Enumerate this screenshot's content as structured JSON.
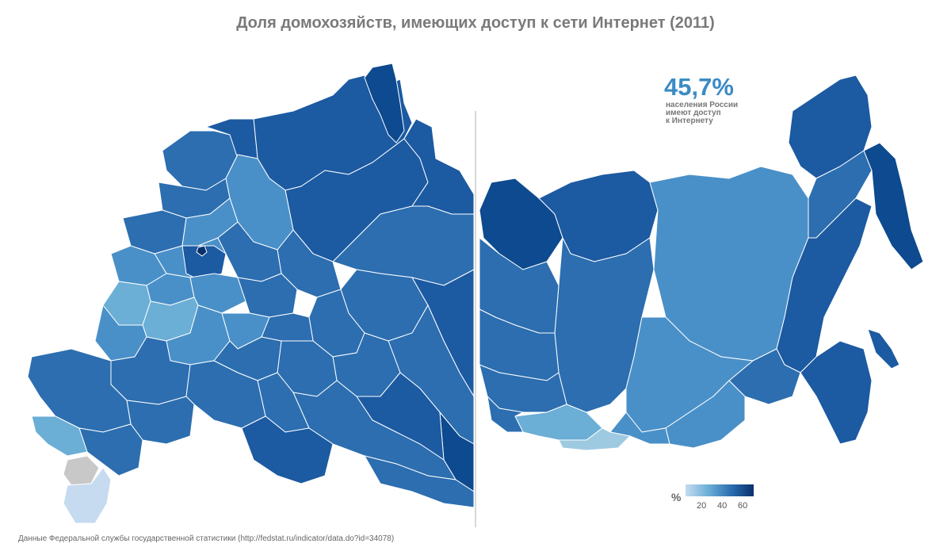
{
  "title": "Доля домохозяйств, имеющих доступ к сети Интернет (2011)",
  "headline": {
    "value": "45,7%",
    "caption_lines": [
      "населения России",
      "имеют доступ",
      "к Интернету"
    ]
  },
  "legend": {
    "unit": "%",
    "ticks": [
      "20",
      "40",
      "60"
    ],
    "scale_min": 10,
    "scale_max": 70,
    "colors": [
      "#c6dbef",
      "#6baed6",
      "#2c6eb0",
      "#08306b"
    ]
  },
  "source": "Данные Федеральной службы государственной статистики (http://fedstat.ru/indicator/data.do?id=34078)",
  "colors": {
    "very_low": "#c6dbef",
    "low": "#9ecae1",
    "light": "#6baed6",
    "medium": "#4a90c8",
    "medium_dark": "#2c6eb0",
    "dark": "#1c5aa2",
    "very_dark": "#0d4a8f",
    "darkest": "#08306b",
    "no_data": "#c8c8c8"
  }
}
